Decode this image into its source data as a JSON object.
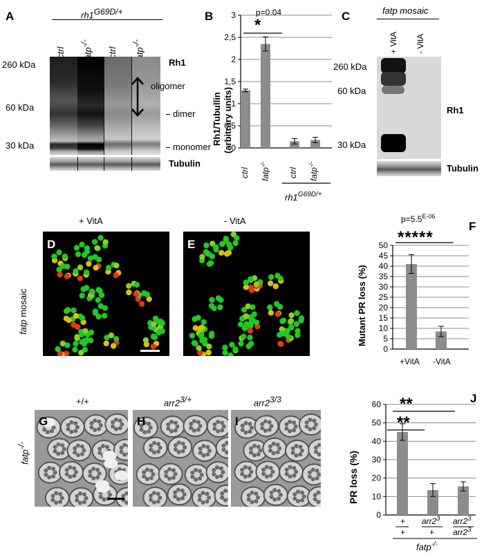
{
  "panels": {
    "A": {
      "letter": "A",
      "genotype_header": "rh1",
      "genotype_sup": "G69D/+",
      "lanes": [
        "ctrl",
        "fatp",
        "ctrl",
        "fatp"
      ],
      "lane_sup": [
        "",
        "-/-",
        "",
        "-/-"
      ],
      "size_markers": [
        "260 kDa",
        "60 kDa",
        "30 kDa"
      ],
      "right_labels": {
        "rh1": "Rh1",
        "oligomer": "oligomer",
        "dimer": "dimer",
        "monomer": "monomer"
      },
      "tubulin": "Tubulin"
    },
    "B": {
      "letter": "B",
      "pvalue": "p=0.04",
      "sig": "*",
      "ylabel_line1": "Rh1/Tubullin",
      "ylabel_line2": "(arbitrary units)",
      "yticks": [
        "0",
        "0,5",
        "1",
        "1,5",
        "2",
        "2,5",
        "3"
      ],
      "xlabels": [
        "ctrl",
        "fatp",
        "ctrl",
        "fatp"
      ],
      "xlabel_sup": [
        "",
        "-/-",
        "",
        "-/-"
      ],
      "group_label": "rh1",
      "group_sup": "G69D/+"
    },
    "C": {
      "letter": "C",
      "header": "fatp mosaic",
      "lanes": [
        "+ VitA",
        "- VitA"
      ],
      "size_markers": [
        "260 kDa",
        "60 kDa",
        "30 kDa"
      ],
      "rh1": "Rh1",
      "tubulin": "Tubulin"
    },
    "DE": {
      "d": "D",
      "e": "E",
      "title_d": "+ VitA",
      "title_e": "- VitA",
      "side_label_italic": "fatp",
      "side_label_rest": " mosaic"
    },
    "F": {
      "letter": "F",
      "pvalue": "p=5.5",
      "pvalue_exp": "E-06",
      "sig": "*****",
      "ylabel": "Mutant PR loss (%)",
      "yticks": [
        "0",
        "5",
        "10",
        "15",
        "20",
        "25",
        "30",
        "35",
        "40",
        "45",
        "50"
      ],
      "xlabels": [
        "+VitA",
        "-VitA"
      ]
    },
    "GHI": {
      "g": "G",
      "h": "H",
      "i": "I",
      "title_g": "+/+",
      "title_h": "arr2",
      "title_h_sup": "3/+",
      "title_i": "arr2",
      "title_i_sup": "3/3",
      "side_label": "fatp",
      "side_sup": "-/-"
    },
    "J": {
      "letter": "J",
      "sig1": "**",
      "sig2": "**",
      "ylabel": "PR loss (%)",
      "yticks": [
        "0",
        "10",
        "20",
        "30",
        "40",
        "50",
        "60"
      ],
      "x_top": [
        "+",
        "arr2",
        "arr2"
      ],
      "x_top_sup": [
        "",
        "3",
        "3"
      ],
      "x_bottom": [
        "+",
        "+",
        "arr2"
      ],
      "x_bottom_sup": [
        "",
        "",
        "3"
      ],
      "group_label": "fatp",
      "group_sup": "-/-"
    }
  },
  "chart_data": [
    {
      "type": "bar",
      "panel": "B",
      "categories": [
        "ctrl",
        "fatp-/-",
        "ctrl (rh1 G69D/+)",
        "fatp-/- (rh1 G69D/+)"
      ],
      "values": [
        1.3,
        2.35,
        0.15,
        0.18
      ],
      "errors": [
        0.03,
        0.16,
        0.06,
        0.06
      ],
      "ylabel": "Rh1/Tubullin (arbitrary units)",
      "ylim": [
        0,
        3
      ],
      "grid": true
    },
    {
      "type": "bar",
      "panel": "F",
      "categories": [
        "+VitA",
        "-VitA"
      ],
      "values": [
        41,
        8.5
      ],
      "errors": [
        4.5,
        2.5
      ],
      "ylabel": "Mutant PR loss (%)",
      "ylim": [
        0,
        50
      ],
      "grid": true
    },
    {
      "type": "bar",
      "panel": "J",
      "categories": [
        "+/+",
        "arr2 3/+",
        "arr2 3/3"
      ],
      "values": [
        45,
        13.5,
        15.5
      ],
      "errors": [
        4.5,
        3.5,
        2.5
      ],
      "ylabel": "PR loss (%)",
      "ylim": [
        0,
        60
      ],
      "grid": true
    }
  ]
}
